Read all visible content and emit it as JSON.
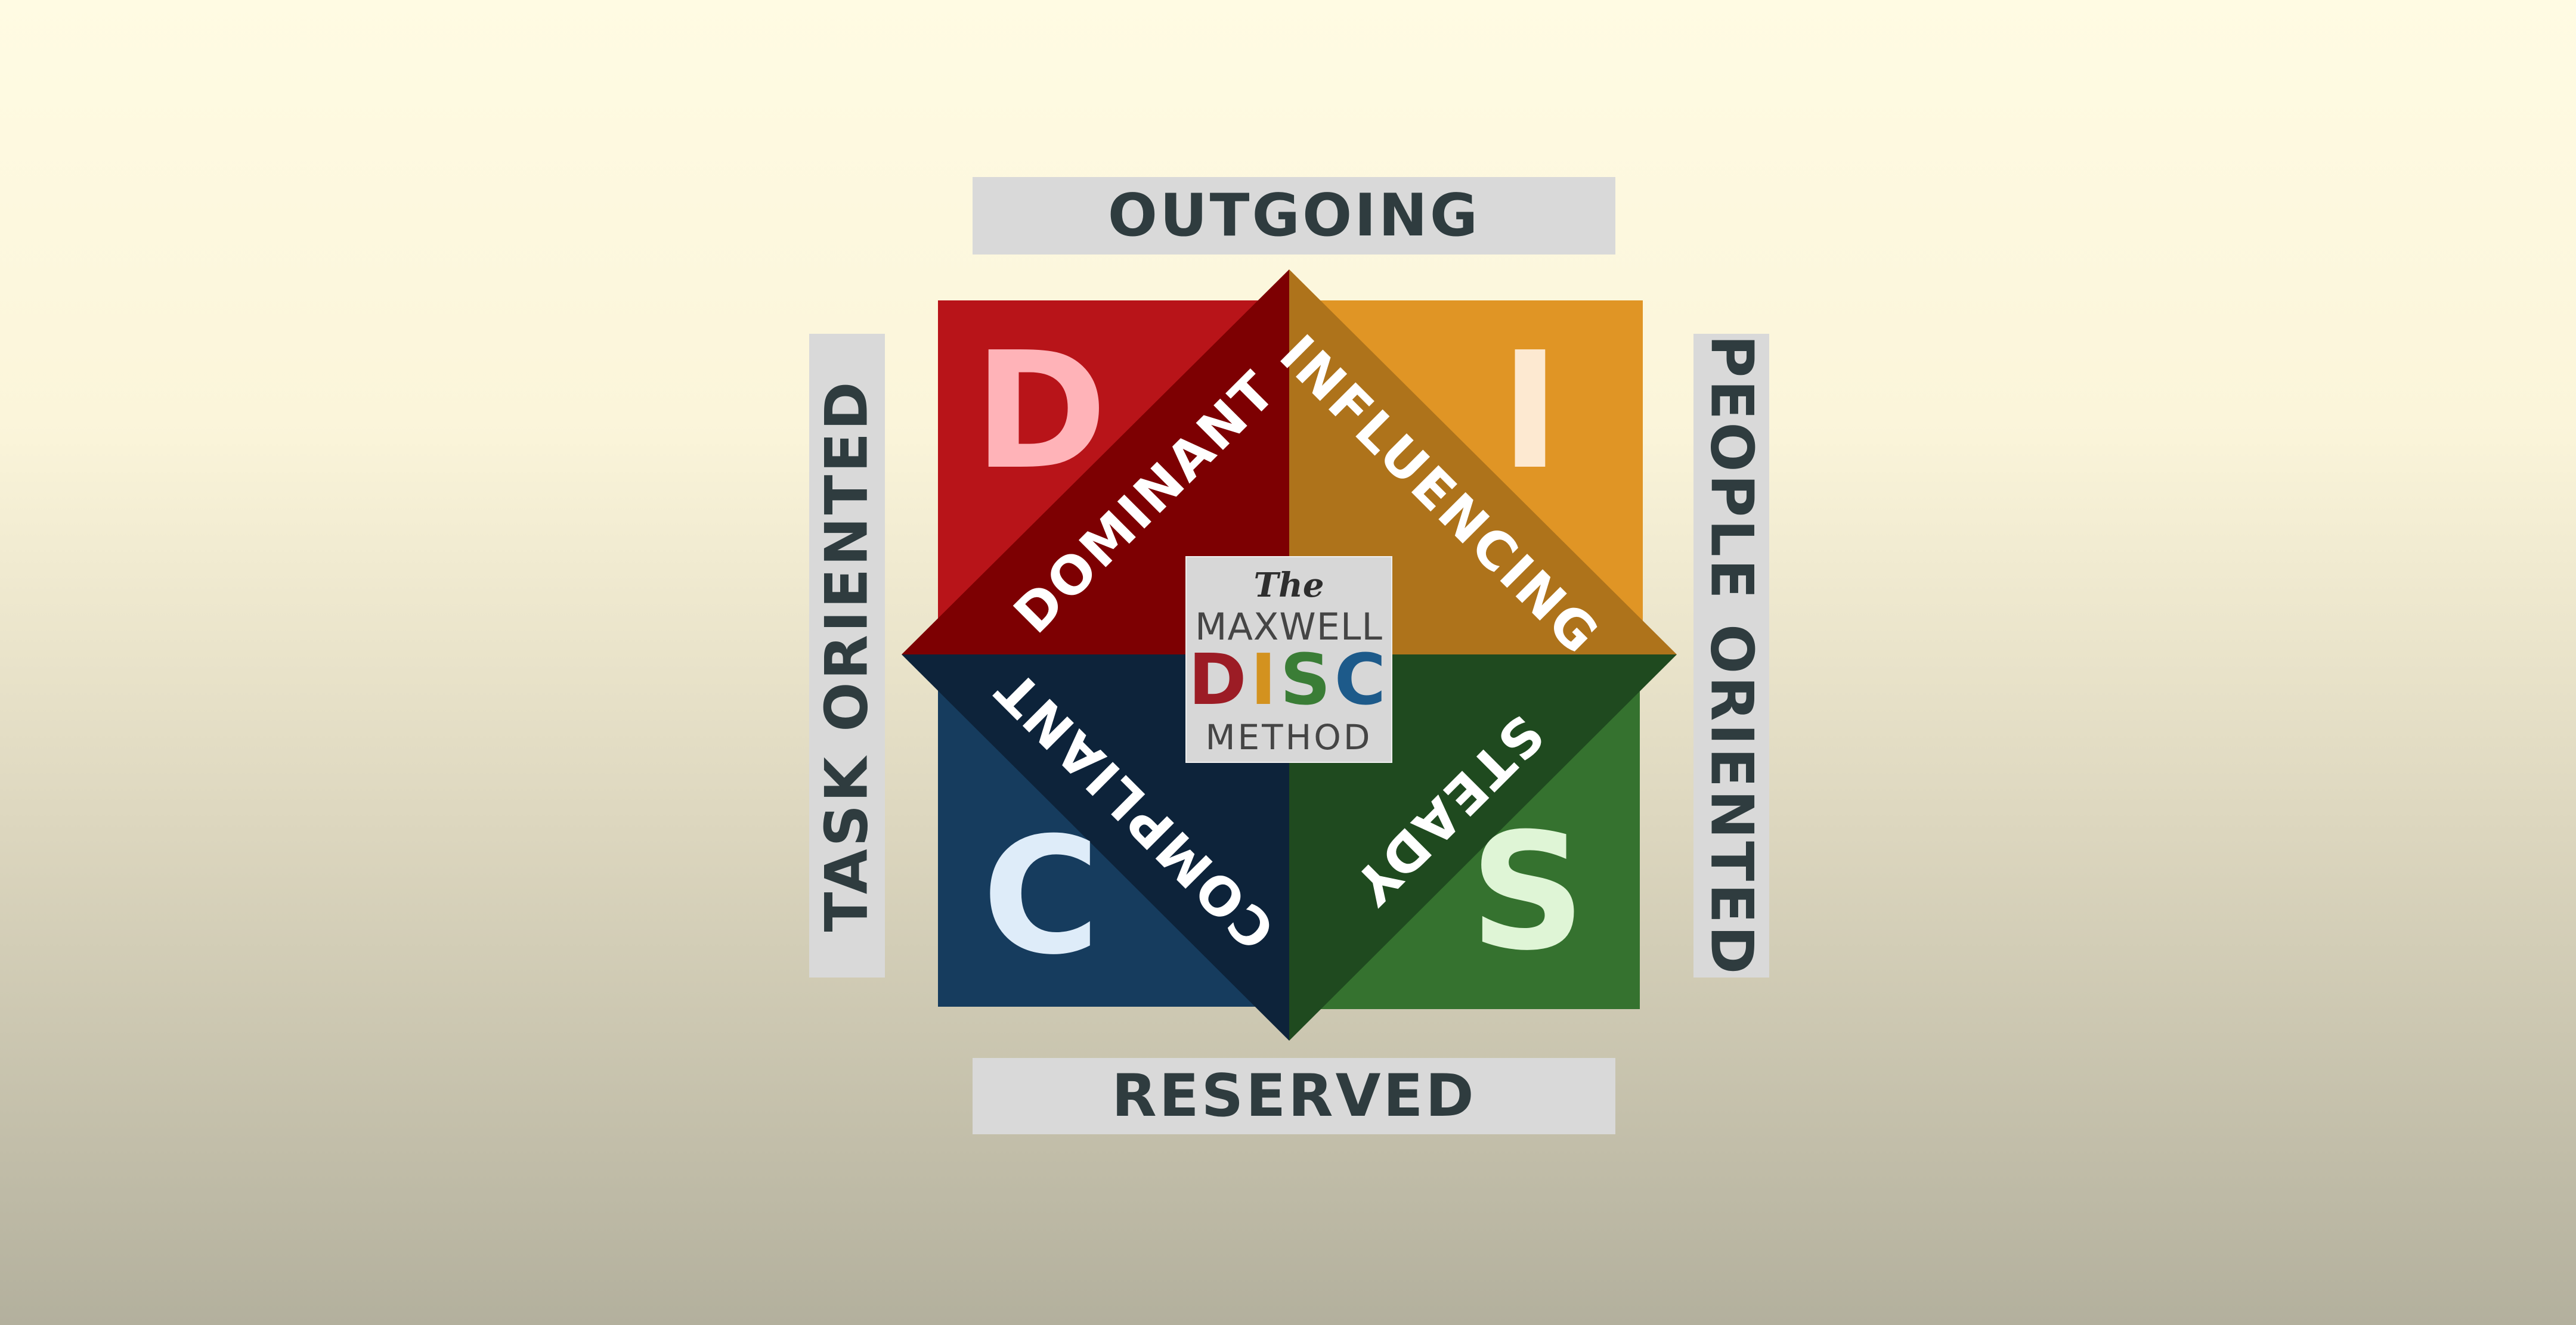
{
  "axes": {
    "top": "OUTGOING",
    "bottom": "RESERVED",
    "left": "TASK ORIENTED",
    "right": "PEOPLE ORIENTED"
  },
  "quadrants": {
    "dominant": {
      "letter": "D",
      "label": "DOMINANT",
      "color": "#b81419",
      "triangle_color": "#7d0002",
      "letter_color": "#ffb3b8"
    },
    "influencing": {
      "letter": "I",
      "label": "INFLUENCING",
      "color": "#e09525",
      "triangle_color": "#ae731b",
      "letter_color": "#fde9d1"
    },
    "compliant": {
      "letter": "C",
      "label": "COMPLIANT",
      "color": "#163c5e",
      "triangle_color": "#0d233a",
      "letter_color": "#deecf9"
    },
    "steady": {
      "letter": "S",
      "label": "STEADY",
      "color": "#35722f",
      "triangle_color": "#1f4a1f",
      "letter_color": "#dff5d6"
    }
  },
  "logo": {
    "the": "The",
    "name": "MAXWELL",
    "disc_letters": [
      {
        "letter": "D",
        "color": "#9c1c25"
      },
      {
        "letter": "I",
        "color": "#d3921f"
      },
      {
        "letter": "S",
        "color": "#3a7d36"
      },
      {
        "letter": "C",
        "color": "#1d5a8a"
      }
    ],
    "method": "METHOD"
  }
}
